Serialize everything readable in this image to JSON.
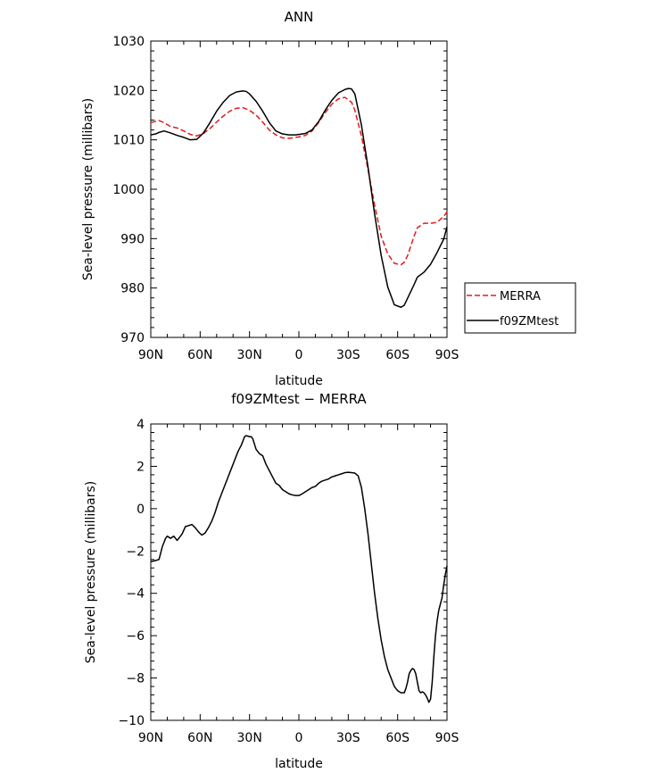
{
  "chart_data": [
    {
      "type": "line",
      "title": "ANN",
      "xlabel": "latitude",
      "ylabel": "Sea-level pressure (millibars)",
      "xlim": [
        90,
        -90
      ],
      "ylim": [
        970,
        1030
      ],
      "x_ticks": [
        90,
        60,
        30,
        0,
        -30,
        -60,
        -90
      ],
      "x_tick_labels": [
        "90N",
        "60N",
        "30N",
        "0",
        "30S",
        "60S",
        "90S"
      ],
      "y_ticks": [
        970,
        980,
        990,
        1000,
        1010,
        1020,
        1030
      ],
      "y_tick_labels": [
        "970",
        "980",
        "990",
        "1000",
        "1010",
        "1020",
        "1030"
      ],
      "legend": "right",
      "series": [
        {
          "name": "MERRA",
          "color": "#e41a1c",
          "dash": "dashed",
          "x": [
            90,
            85,
            82,
            78,
            74,
            70,
            66,
            62,
            58,
            54,
            50,
            46,
            42,
            38,
            34,
            30,
            26,
            22,
            18,
            14,
            10,
            6,
            2,
            0,
            -4,
            -8,
            -12,
            -16,
            -20,
            -24,
            -28,
            -32,
            -34,
            -38,
            -42,
            -46,
            -50,
            -54,
            -58,
            -62,
            -64,
            -66,
            -68,
            -70,
            -72,
            -76,
            -80,
            -84,
            -88,
            -90
          ],
          "y": [
            1013.5,
            1013.9,
            1013.5,
            1012.7,
            1012.4,
            1011.8,
            1011.1,
            1010.8,
            1011.3,
            1012.3,
            1013.6,
            1014.8,
            1015.8,
            1016.4,
            1016.5,
            1016.0,
            1015.0,
            1013.6,
            1012.0,
            1011.0,
            1010.4,
            1010.3,
            1010.5,
            1010.6,
            1010.9,
            1011.8,
            1013.5,
            1015.5,
            1017.2,
            1018.3,
            1018.6,
            1017.6,
            1016.0,
            1010.8,
            1004.0,
            996.8,
            990.5,
            986.9,
            985.0,
            984.7,
            985.2,
            986.5,
            988.5,
            990.5,
            992.2,
            993.1,
            993.1,
            993.3,
            994.5,
            995.4
          ]
        },
        {
          "name": "f09ZMtest",
          "color": "#000000",
          "dash": "solid",
          "x": [
            90,
            87,
            85,
            82,
            78,
            74,
            70,
            66,
            62,
            58,
            54,
            50,
            46,
            42,
            38,
            34,
            32,
            30,
            26,
            22,
            18,
            14,
            10,
            6,
            2,
            0,
            -4,
            -8,
            -12,
            -16,
            -20,
            -24,
            -28,
            -30,
            -32,
            -34,
            -38,
            -42,
            -46,
            -50,
            -54,
            -58,
            -62,
            -64,
            -66,
            -68,
            -70,
            -72,
            -76,
            -80,
            -84,
            -88,
            -90
          ],
          "y": [
            1011.0,
            1011.2,
            1011.5,
            1011.8,
            1011.4,
            1010.9,
            1010.5,
            1010.0,
            1010.1,
            1011.4,
            1013.5,
            1015.8,
            1017.6,
            1019.0,
            1019.7,
            1019.9,
            1019.8,
            1019.3,
            1017.8,
            1015.8,
            1013.5,
            1011.8,
            1011.2,
            1011.0,
            1011.0,
            1011.1,
            1011.3,
            1012.0,
            1013.7,
            1016.0,
            1018.0,
            1019.5,
            1020.2,
            1020.4,
            1020.3,
            1019.3,
            1013.0,
            1004.5,
            995.0,
            986.6,
            980.2,
            976.6,
            976.1,
            976.5,
            977.9,
            979.3,
            980.7,
            982.2,
            983.2,
            984.8,
            987.2,
            989.9,
            992.4
          ]
        }
      ]
    },
    {
      "type": "line",
      "title": "f09ZMtest − MERRA",
      "xlabel": "latitude",
      "ylabel": "Sea-level pressure (millibars)",
      "xlim": [
        90,
        -90
      ],
      "ylim": [
        -10,
        4
      ],
      "x_ticks": [
        90,
        60,
        30,
        0,
        -30,
        -60,
        -90
      ],
      "x_tick_labels": [
        "90N",
        "60N",
        "30N",
        "0",
        "30S",
        "60S",
        "90S"
      ],
      "y_ticks": [
        -10,
        -8,
        -6,
        -4,
        -2,
        0,
        2,
        4
      ],
      "y_tick_labels": [
        "−10",
        "−8",
        "−6",
        "−4",
        "−2",
        "0",
        "2",
        "4"
      ],
      "series": [
        {
          "color": "#000000",
          "x": [
            90,
            87,
            85,
            83,
            81,
            80,
            78,
            76,
            74,
            73,
            71,
            69,
            67,
            65,
            63,
            61,
            59,
            57,
            55,
            53,
            51,
            49,
            47,
            45,
            43,
            41,
            39,
            37,
            35,
            34,
            33,
            32,
            30,
            29,
            28,
            26,
            24,
            22,
            20,
            18,
            16,
            14,
            12,
            10,
            8,
            6,
            4,
            2,
            0,
            -2,
            -4,
            -6,
            -8,
            -10,
            -12,
            -14,
            -16,
            -18,
            -20,
            -22,
            -24,
            -26,
            -28,
            -30,
            -32,
            -34,
            -36,
            -38,
            -40,
            -42,
            -44,
            -46,
            -48,
            -50,
            -52,
            -54,
            -56,
            -58,
            -60,
            -62,
            -64,
            -65,
            -66,
            -67,
            -68,
            -69,
            -70,
            -71,
            -72,
            -73,
            -74,
            -75,
            -76,
            -77,
            -78,
            -79,
            -80,
            -81,
            -82,
            -83,
            -84,
            -85,
            -86,
            -87,
            -88,
            -89,
            -90
          ],
          "y": [
            -2.5,
            -2.45,
            -2.4,
            -1.8,
            -1.4,
            -1.3,
            -1.4,
            -1.3,
            -1.5,
            -1.4,
            -1.2,
            -0.85,
            -0.8,
            -0.75,
            -0.9,
            -1.1,
            -1.25,
            -1.15,
            -0.9,
            -0.6,
            -0.2,
            0.3,
            0.7,
            1.1,
            1.5,
            1.9,
            2.3,
            2.7,
            3.0,
            3.2,
            3.4,
            3.45,
            3.4,
            3.4,
            3.3,
            2.8,
            2.6,
            2.5,
            2.1,
            1.8,
            1.5,
            1.2,
            1.1,
            0.9,
            0.8,
            0.7,
            0.65,
            0.62,
            0.62,
            0.7,
            0.8,
            0.9,
            1.0,
            1.05,
            1.2,
            1.3,
            1.35,
            1.4,
            1.5,
            1.55,
            1.6,
            1.65,
            1.7,
            1.72,
            1.7,
            1.68,
            1.55,
            1.0,
            0.0,
            -1.2,
            -2.6,
            -4.0,
            -5.2,
            -6.2,
            -7.0,
            -7.6,
            -8.0,
            -8.4,
            -8.6,
            -8.7,
            -8.7,
            -8.5,
            -8.2,
            -7.8,
            -7.65,
            -7.55,
            -7.6,
            -7.8,
            -8.2,
            -8.6,
            -8.7,
            -8.65,
            -8.7,
            -8.8,
            -8.95,
            -9.15,
            -9.0,
            -8.2,
            -7.0,
            -6.0,
            -5.3,
            -4.8,
            -4.5,
            -4.2,
            -3.6,
            -3.1,
            -2.7
          ]
        }
      ]
    }
  ],
  "legend": {
    "entries": [
      {
        "label": "MERRA",
        "color": "#e41a1c",
        "dash": "dashed"
      },
      {
        "label": "f09ZMtest",
        "color": "#000000",
        "dash": "solid"
      }
    ]
  }
}
